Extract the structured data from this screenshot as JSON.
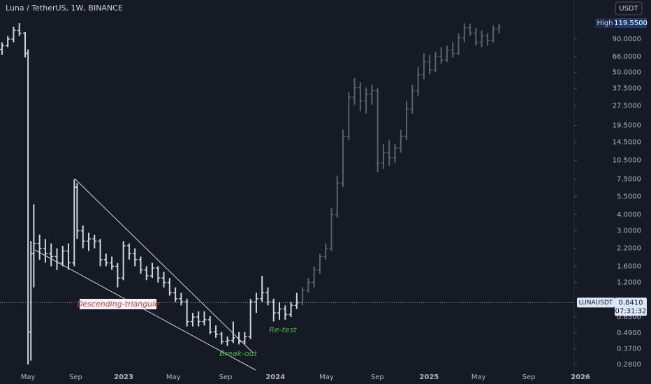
{
  "chart_data": {
    "type": "ohlc",
    "title": "Luna / TetherUS, 1W, BINANCE",
    "symbol": "LUNAUSDT",
    "currency": "USDT",
    "log_scale": true,
    "last_price": {
      "value": 0.841,
      "label": "0.8410"
    },
    "countdown": "07:31:32",
    "high_label": "High",
    "high_price": {
      "value": 119.55,
      "label": "119.5500"
    },
    "annotations": [
      "Descending-triangule",
      "Break-out",
      "Re-test"
    ],
    "xlim": [
      -9.7,
      189
    ],
    "ylim": [
      0.254,
      180
    ],
    "xticks": [
      {
        "value": 0,
        "label": "May"
      },
      {
        "value": 16.5,
        "label": "Sep"
      },
      {
        "value": 33.1,
        "label": "2023"
      },
      {
        "value": 50.3,
        "label": "May"
      },
      {
        "value": 68.4,
        "label": "Sep"
      },
      {
        "value": 85.6,
        "label": "2024"
      },
      {
        "value": 103.3,
        "label": "May"
      },
      {
        "value": 120.9,
        "label": "Sep"
      },
      {
        "value": 138.8,
        "label": "2025"
      },
      {
        "value": 155.9,
        "label": "May"
      },
      {
        "value": 173.3,
        "label": "Sep"
      },
      {
        "value": 191.2,
        "label": "2026"
      }
    ],
    "yticks": [
      {
        "value": 0.28,
        "label": "0.2800"
      },
      {
        "value": 0.37,
        "label": "0.3700"
      },
      {
        "value": 0.49,
        "label": "0.4900"
      },
      {
        "value": 0.65,
        "label": "0.6500"
      },
      {
        "value": 1.2,
        "label": "1.2000"
      },
      {
        "value": 1.6,
        "label": "1.6000"
      },
      {
        "value": 2.2,
        "label": "2.2000"
      },
      {
        "value": 3,
        "label": "3.0000"
      },
      {
        "value": 4,
        "label": "4.0000"
      },
      {
        "value": 5.5,
        "label": "5.5000"
      },
      {
        "value": 7.5,
        "label": "7.5000"
      },
      {
        "value": 10.5,
        "label": "10.5000"
      },
      {
        "value": 14.5,
        "label": "14.5000"
      },
      {
        "value": 19.5,
        "label": "19.5000"
      },
      {
        "value": 27.5,
        "label": "27.5000"
      },
      {
        "value": 37.5,
        "label": "37.5000"
      },
      {
        "value": 50,
        "label": "50.0000"
      },
      {
        "value": 66,
        "label": "66.0000"
      },
      {
        "value": 90,
        "label": "90.0000"
      }
    ],
    "series": [
      {
        "color": "#d1d4dc",
        "x": [
          -9,
          -7,
          -5,
          -3,
          -1,
          0,
          1,
          2,
          4,
          6,
          8,
          10,
          12,
          14,
          16,
          17,
          19,
          21,
          23,
          25,
          27,
          29,
          31,
          33,
          35,
          37,
          39,
          41,
          43,
          45,
          47,
          49,
          51,
          53,
          55,
          57,
          59,
          61,
          63,
          65,
          67,
          69,
          71,
          73,
          75,
          77,
          79,
          81,
          83,
          85,
          87,
          89,
          91,
          93
        ],
        "open": [
          75,
          80,
          90,
          105,
          100,
          70,
          0.5,
          2.0,
          2.4,
          2.2,
          2.0,
          1.9,
          1.7,
          2.1,
          1.7,
          6.5,
          3.0,
          2.5,
          2.6,
          2.5,
          1.8,
          1.7,
          1.6,
          1.3,
          2.3,
          2.0,
          1.8,
          1.5,
          1.35,
          1.55,
          1.3,
          1.2,
          1.0,
          0.9,
          0.85,
          0.6,
          0.65,
          0.6,
          0.62,
          0.5,
          0.48,
          0.42,
          0.43,
          0.45,
          0.42,
          0.46,
          0.85,
          0.9,
          1.0,
          0.85,
          0.7,
          0.75,
          0.68,
          0.8
        ],
        "high": [
          85,
          95,
          112,
          119.55,
          102,
          75,
          2.5,
          4.8,
          2.8,
          2.6,
          2.4,
          2.2,
          2.3,
          2.4,
          7.5,
          7.0,
          3.3,
          2.9,
          2.8,
          2.6,
          2.0,
          1.9,
          1.7,
          2.5,
          2.4,
          2.2,
          1.9,
          1.6,
          1.7,
          1.6,
          1.45,
          1.3,
          1.1,
          1.0,
          0.9,
          0.7,
          0.72,
          0.72,
          0.66,
          0.56,
          0.5,
          0.46,
          0.6,
          0.5,
          0.5,
          0.9,
          1.0,
          1.35,
          1.1,
          0.9,
          0.85,
          0.8,
          0.85,
          1.0
        ],
        "low": [
          68,
          78,
          85,
          95,
          65,
          0.28,
          0.3,
          1.1,
          1.8,
          1.7,
          1.6,
          1.5,
          1.6,
          1.5,
          1.6,
          2.6,
          2.2,
          2.1,
          2.2,
          1.6,
          1.6,
          1.5,
          1.1,
          1.25,
          1.8,
          1.6,
          1.4,
          1.25,
          1.3,
          1.2,
          1.1,
          0.95,
          0.85,
          0.8,
          0.55,
          0.55,
          0.55,
          0.56,
          0.48,
          0.45,
          0.4,
          0.39,
          0.41,
          0.4,
          0.4,
          0.44,
          0.7,
          0.85,
          0.8,
          0.6,
          0.62,
          0.62,
          0.65,
          0.75
        ],
        "close": [
          80,
          90,
          105,
          100,
          70,
          0.5,
          2.0,
          2.4,
          2.2,
          2.0,
          1.9,
          1.7,
          2.1,
          1.7,
          6.5,
          3.0,
          2.5,
          2.6,
          2.5,
          1.8,
          1.7,
          1.6,
          1.3,
          2.3,
          2.0,
          1.8,
          1.5,
          1.35,
          1.55,
          1.3,
          1.2,
          1.0,
          0.9,
          0.85,
          0.6,
          0.65,
          0.6,
          0.62,
          0.5,
          0.48,
          0.42,
          0.43,
          0.45,
          0.42,
          0.46,
          0.85,
          0.9,
          1.0,
          0.85,
          0.7,
          0.75,
          0.68,
          0.8,
          0.84
        ]
      },
      {
        "color": "#5d606b",
        "x": [
          95,
          97,
          99,
          101,
          103,
          105,
          107,
          109,
          111,
          113,
          115,
          117,
          119,
          121,
          123,
          125,
          127,
          129,
          131,
          133,
          135,
          137,
          139,
          141,
          143,
          145,
          147,
          149,
          151,
          153,
          155,
          157,
          159,
          161,
          163
        ],
        "open": [
          0.84,
          1.05,
          1.2,
          1.5,
          1.9,
          2.2,
          4.0,
          7,
          16,
          32,
          38,
          30,
          34,
          36,
          10,
          12,
          11,
          13,
          16,
          26,
          36,
          48,
          60,
          52,
          66,
          62,
          74,
          70,
          92,
          110,
          100,
          85,
          95,
          88,
          108
        ],
        "high": [
          1.1,
          1.3,
          1.6,
          2.0,
          2.4,
          4.5,
          8,
          18,
          35,
          45,
          42,
          38,
          40,
          38,
          14,
          15,
          14,
          18,
          30,
          40,
          55,
          70,
          68,
          72,
          78,
          80,
          85,
          100,
          119,
          118,
          110,
          105,
          100,
          115,
          118
        ],
        "low": [
          0.8,
          1.0,
          1.1,
          1.4,
          1.8,
          2.1,
          3.8,
          6.5,
          15,
          28,
          25,
          24,
          28,
          8.5,
          9,
          9.5,
          10,
          12,
          15,
          24,
          33,
          44,
          48,
          50,
          58,
          60,
          65,
          68,
          85,
          95,
          80,
          78,
          80,
          85,
          100
        ],
        "close": [
          1.05,
          1.2,
          1.5,
          1.9,
          2.2,
          4.0,
          7,
          16,
          32,
          38,
          30,
          34,
          36,
          10,
          12,
          11,
          13,
          16,
          26,
          36,
          48,
          60,
          52,
          66,
          62,
          74,
          70,
          92,
          110,
          100,
          85,
          95,
          88,
          108,
          112
        ]
      }
    ]
  }
}
